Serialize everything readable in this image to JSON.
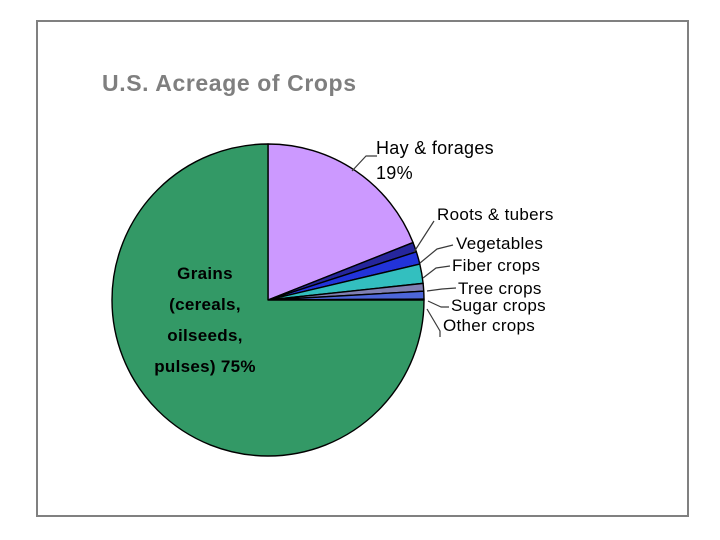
{
  "page": {
    "background": "#FFFFFF",
    "frame_border_color": "#808080"
  },
  "chart_data": {
    "type": "pie",
    "title": "U.S. Acreage of Crops",
    "title_color": "#7F7F7F",
    "legend_position": "none",
    "label_style": "callout labels with leader lines",
    "start_angle_deg": -90,
    "direction": "clockwise",
    "outline_color": "#000000",
    "slices": [
      {
        "label": "Hay & forages",
        "pct": 19,
        "pct_label": "19%",
        "color": "#CC99FF"
      },
      {
        "label": "Roots & tubers",
        "pct": 1.0,
        "color": "#26269C"
      },
      {
        "label": "Vegetables",
        "pct": 1.3,
        "color": "#2233D9"
      },
      {
        "label": "Fiber crops",
        "pct": 2.0,
        "color": "#33BFBF"
      },
      {
        "label": "Tree crops",
        "pct": 0.8,
        "color": "#8080B3"
      },
      {
        "label": "Sugar crops",
        "pct": 0.8,
        "color": "#4D66D9"
      },
      {
        "label": "Other crops",
        "pct": 0.1,
        "color": "#33CCCC"
      },
      {
        "label": "Grains (cereals, oilseeds, pulses)",
        "pct": 75,
        "pct_label": "75%",
        "color": "#339966",
        "block_label": "Grains\n(cereals,\noilseeds,\npulses) 75%"
      }
    ]
  }
}
